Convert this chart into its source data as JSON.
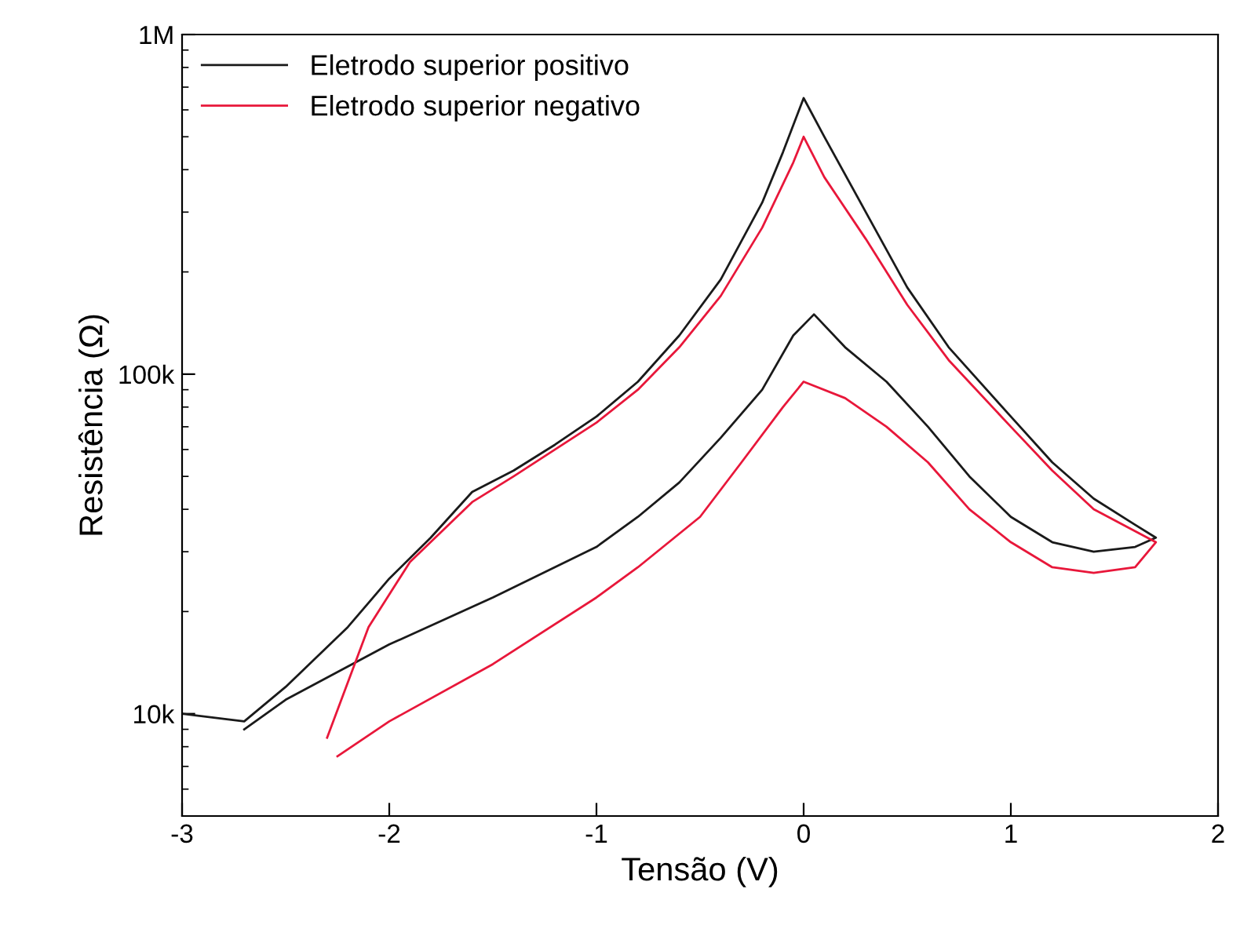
{
  "chart_data": {
    "type": "line",
    "xlabel": "Tensão (V)",
    "ylabel": "Resistência (Ω)",
    "log": "y",
    "xlim": [
      -3,
      2
    ],
    "xticks": [
      -3,
      -2,
      -1,
      0,
      1,
      2
    ],
    "ylim": [
      5000,
      1000000
    ],
    "yticks": [
      {
        "value": 10000,
        "label": "10k"
      },
      {
        "value": 100000,
        "label": "100k"
      },
      {
        "value": 1000000,
        "label": "1M"
      }
    ],
    "grid": false,
    "legend": "top left",
    "marker": "none",
    "line_style": "solid",
    "series": [
      {
        "name": "Eletrodo superior positivo",
        "color": "#1a1a1a",
        "x": [
          -3,
          -2.7,
          -2.5,
          -2.2,
          -2.0,
          -1.8,
          -1.6,
          -1.4,
          -1.2,
          -1.0,
          -0.8,
          -0.6,
          -0.4,
          -0.2,
          -0.1,
          0,
          0.1,
          0.3,
          0.5,
          0.7,
          1.0,
          1.2,
          1.4,
          1.6,
          1.7,
          1.6,
          1.4,
          1.2,
          1.0,
          0.8,
          0.6,
          0.4,
          0.2,
          0.05,
          -0.05,
          -0.2,
          -0.4,
          -0.6,
          -0.8,
          -1.0,
          -1.5,
          -2.0,
          -2.5,
          -2.7
        ],
        "values": [
          10000,
          9500,
          12000,
          18000,
          25000,
          33000,
          45000,
          52000,
          62000,
          75000,
          95000,
          130000,
          190000,
          320000,
          450000,
          650000,
          500000,
          300000,
          180000,
          120000,
          75000,
          55000,
          43000,
          36000,
          33000,
          31000,
          30000,
          32000,
          38000,
          50000,
          70000,
          95000,
          120000,
          150000,
          130000,
          90000,
          65000,
          48000,
          38000,
          31000,
          22000,
          16000,
          11000,
          9000
        ]
      },
      {
        "name": "Eletrodo superior negativo",
        "color": "#e8173a",
        "x": [
          -2.3,
          -2.1,
          -1.9,
          -1.6,
          -1.4,
          -1.2,
          -1.0,
          -0.8,
          -0.6,
          -0.4,
          -0.2,
          -0.05,
          0,
          0.1,
          0.3,
          0.5,
          0.7,
          1.0,
          1.2,
          1.4,
          1.7,
          1.6,
          1.4,
          1.2,
          1.0,
          0.8,
          0.6,
          0.4,
          0.2,
          0.0,
          -0.1,
          -0.3,
          -0.5,
          -0.8,
          -1.0,
          -1.5,
          -2.0,
          -2.25
        ],
        "values": [
          8500,
          18000,
          28000,
          42000,
          50000,
          60000,
          72000,
          90000,
          120000,
          170000,
          270000,
          420000,
          500000,
          380000,
          250000,
          160000,
          110000,
          70000,
          52000,
          40000,
          32000,
          27000,
          26000,
          27000,
          32000,
          40000,
          55000,
          70000,
          85000,
          95000,
          80000,
          55000,
          38000,
          27000,
          22000,
          14000,
          9500,
          7500
        ]
      }
    ]
  }
}
